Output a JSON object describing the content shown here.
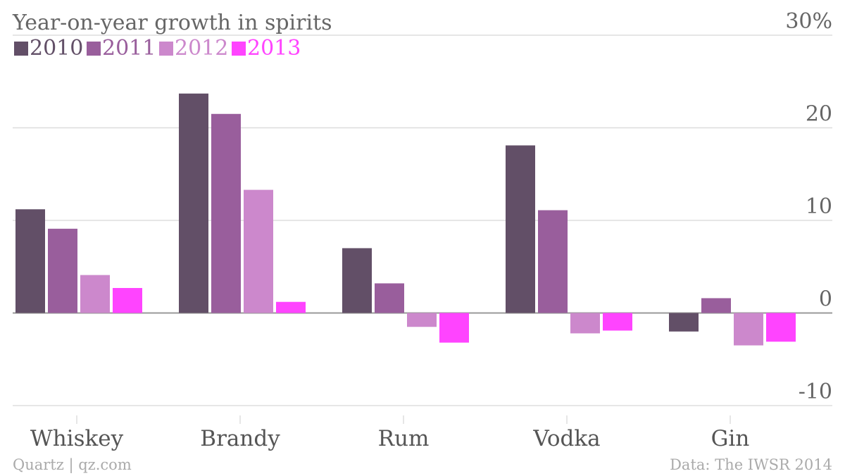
{
  "title": "Year-on-year growth in spirits",
  "source_left": "Quartz | qz.com",
  "source_right": "Data: The IWSR 2014",
  "colors": {
    "2010": "#624f67",
    "2011": "#995e9c",
    "2012": "#cc88cc",
    "2013": "#ff44ff",
    "gridline": "#dddddd",
    "zeroline": "#999999",
    "text": "#666666"
  },
  "chart_data": {
    "type": "bar",
    "title": "Year-on-year growth in spirits",
    "xlabel": "",
    "ylabel": "",
    "categories": [
      "Whiskey",
      "Brandy",
      "Rum",
      "Vodka",
      "Gin"
    ],
    "series": [
      {
        "name": "2010",
        "values": [
          11.2,
          23.7,
          7.0,
          18.1,
          -2.0
        ]
      },
      {
        "name": "2011",
        "values": [
          9.1,
          21.5,
          3.2,
          11.1,
          1.6
        ]
      },
      {
        "name": "2012",
        "values": [
          4.1,
          13.3,
          -1.5,
          -2.2,
          -3.5
        ]
      },
      {
        "name": "2013",
        "values": [
          2.7,
          1.2,
          -3.2,
          -1.9,
          -3.1
        ]
      }
    ],
    "ylim": [
      -10,
      30
    ],
    "yticks": [
      {
        "value": 30,
        "label": "30%"
      },
      {
        "value": 20,
        "label": "20"
      },
      {
        "value": 10,
        "label": "10"
      },
      {
        "value": 0,
        "label": "0"
      },
      {
        "value": -10,
        "label": "-10"
      }
    ],
    "grid": true,
    "legend_position": "top-left"
  }
}
